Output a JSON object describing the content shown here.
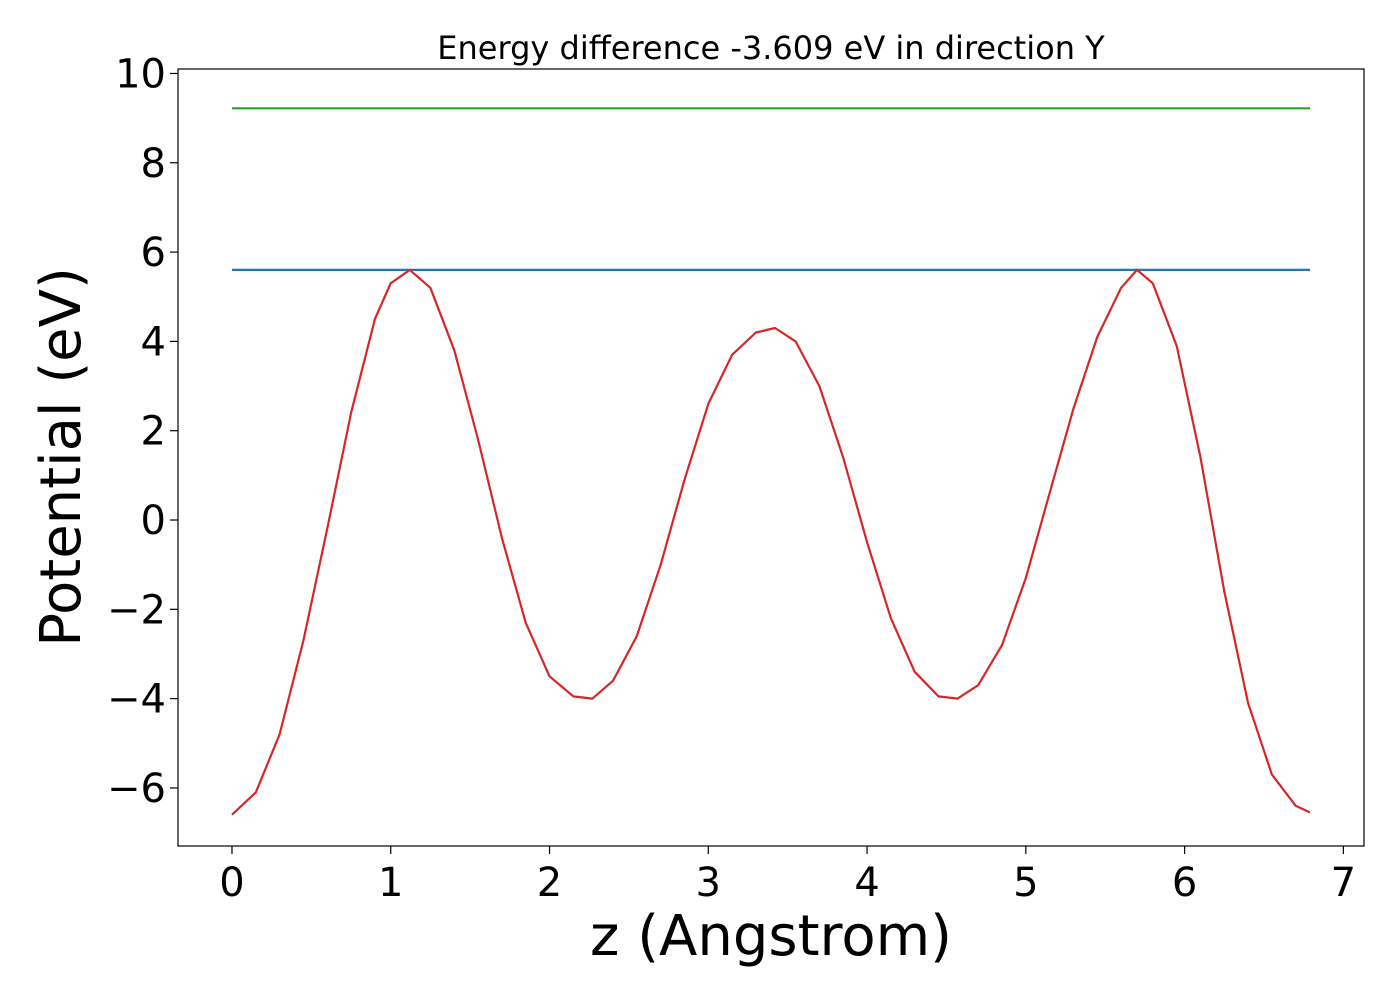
{
  "chart_data": {
    "type": "line",
    "title": "Energy difference -3.609 eV in direction Y",
    "xlabel": "z (Angstrom)",
    "ylabel": "Potential (eV)",
    "xlim": [
      -0.34,
      7.13
    ],
    "ylim": [
      -7.3,
      10.1
    ],
    "xticks": [
      0,
      1,
      2,
      3,
      4,
      5,
      6,
      7
    ],
    "xtick_labels": [
      "0",
      "1",
      "2",
      "3",
      "4",
      "5",
      "6",
      "7"
    ],
    "yticks": [
      -6,
      -4,
      -2,
      0,
      2,
      4,
      6,
      8,
      10
    ],
    "ytick_labels": [
      "−6",
      "−4",
      "−2",
      "0",
      "2",
      "4",
      "6",
      "8",
      "10"
    ],
    "grid": false,
    "series": [
      {
        "color": "#2ca02c",
        "x": [
          0,
          6.79
        ],
        "y": [
          9.22,
          9.22
        ]
      },
      {
        "color": "#1f77b4",
        "x": [
          0,
          6.79
        ],
        "y": [
          5.6,
          5.6
        ]
      },
      {
        "color": "#d62728",
        "x": [
          0,
          0.15,
          0.3,
          0.45,
          0.6,
          0.75,
          0.9,
          1.0,
          1.12,
          1.25,
          1.4,
          1.55,
          1.7,
          1.85,
          2.0,
          2.15,
          2.27,
          2.4,
          2.55,
          2.7,
          2.85,
          3.0,
          3.15,
          3.3,
          3.42,
          3.55,
          3.7,
          3.85,
          4.0,
          4.15,
          4.3,
          4.45,
          4.57,
          4.7,
          4.85,
          5.0,
          5.15,
          5.3,
          5.45,
          5.6,
          5.7,
          5.8,
          5.95,
          6.1,
          6.25,
          6.4,
          6.55,
          6.7,
          6.79
        ],
        "y": [
          -6.6,
          -6.1,
          -4.8,
          -2.7,
          -0.2,
          2.4,
          4.5,
          5.3,
          5.6,
          5.2,
          3.8,
          1.8,
          -0.4,
          -2.3,
          -3.5,
          -3.95,
          -4.0,
          -3.6,
          -2.6,
          -1.0,
          0.9,
          2.6,
          3.7,
          4.2,
          4.3,
          4.0,
          3.0,
          1.4,
          -0.5,
          -2.2,
          -3.4,
          -3.95,
          -4.0,
          -3.7,
          -2.8,
          -1.3,
          0.6,
          2.5,
          4.1,
          5.2,
          5.6,
          5.3,
          3.9,
          1.4,
          -1.6,
          -4.1,
          -5.7,
          -6.4,
          -6.55
        ]
      }
    ]
  }
}
